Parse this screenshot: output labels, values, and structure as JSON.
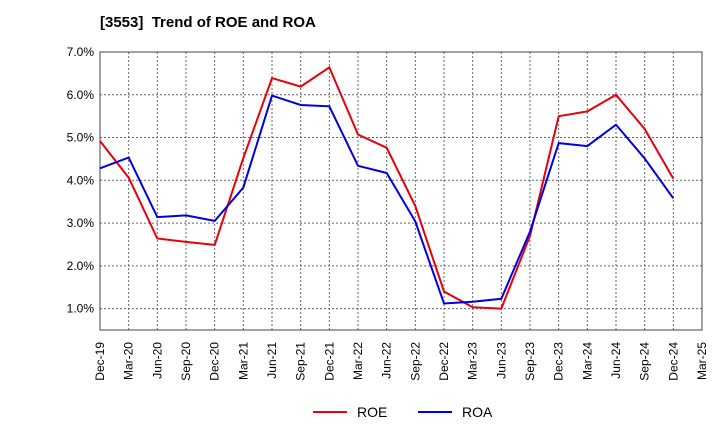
{
  "chart_data": {
    "type": "line",
    "title": "[3553]  Trend of ROE and ROA",
    "categories": [
      "Dec-19",
      "Mar-20",
      "Jun-20",
      "Sep-20",
      "Dec-20",
      "Mar-21",
      "Jun-21",
      "Sep-21",
      "Dec-21",
      "Mar-22",
      "Jun-22",
      "Sep-22",
      "Dec-22",
      "Mar-23",
      "Jun-23",
      "Sep-23",
      "Dec-23",
      "Mar-24",
      "Jun-24",
      "Sep-24",
      "Dec-24",
      "Mar-25"
    ],
    "ylim": [
      0.5,
      7.0
    ],
    "yticks": [
      1.0,
      2.0,
      3.0,
      4.0,
      5.0,
      6.0,
      7.0
    ],
    "ytick_labels": [
      "1.0%",
      "2.0%",
      "3.0%",
      "4.0%",
      "5.0%",
      "6.0%",
      "7.0%"
    ],
    "grid": true,
    "legend_position": "bottom-center",
    "series": [
      {
        "name": "ROE",
        "color": "#e8000b",
        "values": [
          4.92,
          4.06,
          2.64,
          2.56,
          2.49,
          4.52,
          6.39,
          6.19,
          6.64,
          5.07,
          4.76,
          3.4,
          1.4,
          1.03,
          1.0,
          2.7,
          5.5,
          5.61,
          6.0,
          5.2,
          4.04,
          null
        ]
      },
      {
        "name": "ROA",
        "color": "#0000e6",
        "values": [
          4.28,
          4.53,
          3.14,
          3.18,
          3.05,
          3.83,
          5.98,
          5.76,
          5.73,
          4.34,
          4.17,
          3.04,
          1.12,
          1.16,
          1.23,
          2.8,
          4.87,
          4.8,
          5.3,
          4.51,
          3.58,
          null
        ]
      }
    ]
  }
}
